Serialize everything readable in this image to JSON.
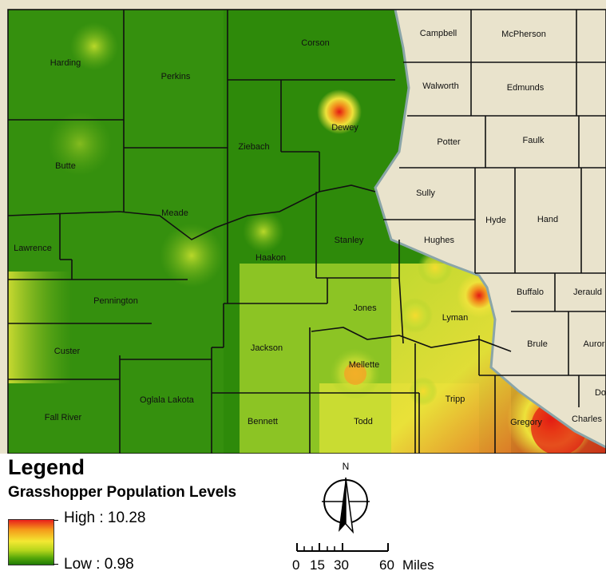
{
  "map": {
    "counties": [
      {
        "name": "Harding"
      },
      {
        "name": "Perkins"
      },
      {
        "name": "Corson"
      },
      {
        "name": "Butte"
      },
      {
        "name": "Meade"
      },
      {
        "name": "Ziebach"
      },
      {
        "name": "Dewey"
      },
      {
        "name": "Lawrence"
      },
      {
        "name": "Pennington"
      },
      {
        "name": "Haakon"
      },
      {
        "name": "Stanley"
      },
      {
        "name": "Custer"
      },
      {
        "name": "Jackson"
      },
      {
        "name": "Jones"
      },
      {
        "name": "Lyman"
      },
      {
        "name": "Mellette"
      },
      {
        "name": "Fall River"
      },
      {
        "name": "Oglala Lakota"
      },
      {
        "name": "Bennett"
      },
      {
        "name": "Todd"
      },
      {
        "name": "Tripp"
      },
      {
        "name": "Gregory"
      },
      {
        "name": "Campbell"
      },
      {
        "name": "McPherson"
      },
      {
        "name": "Walworth"
      },
      {
        "name": "Edmunds"
      },
      {
        "name": "Potter"
      },
      {
        "name": "Faulk"
      },
      {
        "name": "Sully"
      },
      {
        "name": "Hyde"
      },
      {
        "name": "Hand"
      },
      {
        "name": "Hughes"
      },
      {
        "name": "Buffalo"
      },
      {
        "name": "Jerauld"
      },
      {
        "name": "Brule"
      },
      {
        "name": "Auror"
      },
      {
        "name": "Charles"
      },
      {
        "name": "Do"
      }
    ],
    "colors": {
      "low": "#1f7a05",
      "mid": "#f3e832",
      "high": "#e8201b",
      "outside": "#e9e3cc",
      "river": "#cdd7d8"
    }
  },
  "legend": {
    "title": "Legend",
    "subtitle": "Grasshopper Population Levels",
    "high_label": "High : 10.28",
    "low_label": "Low : 0.98"
  },
  "north_arrow": {
    "label": "N"
  },
  "scale_bar": {
    "ticks": [
      "0",
      "15",
      "30",
      "60"
    ],
    "unit": "Miles"
  }
}
